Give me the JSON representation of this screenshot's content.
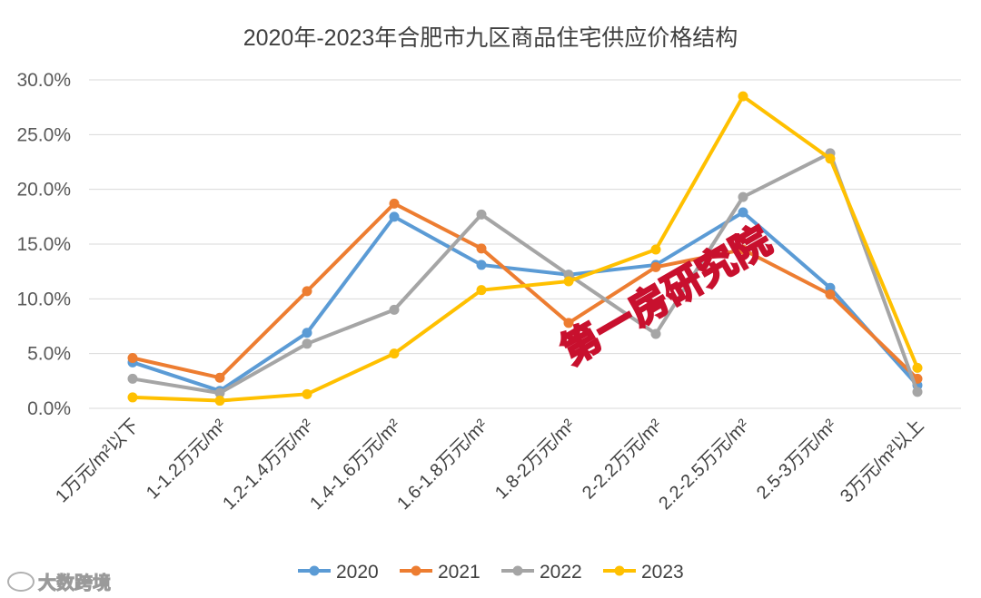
{
  "chart_data": {
    "type": "line",
    "title": "2020年-2023年合肥市九区商品住宅供应价格结构",
    "categories": [
      "1万元/m²以下",
      "1-1.2万元/m²",
      "1.2-1.4万元/m²",
      "1.4-1.6万元/m²",
      "1.6-1.8万元/m²",
      "1.8-2万元/m²",
      "2-2.2万元/m²",
      "2.2-2.5万元/m²",
      "2.5-3万元/m²",
      "3万元/m²以上"
    ],
    "ylim": [
      0,
      30
    ],
    "yticks": [
      "0.0%",
      "5.0%",
      "10.0%",
      "15.0%",
      "20.0%",
      "25.0%",
      "30.0%"
    ],
    "grid": true,
    "legend_position": "bottom",
    "series": [
      {
        "name": "2020",
        "color": "#5b9bd5",
        "values": [
          4.2,
          1.6,
          6.9,
          17.5,
          13.1,
          12.2,
          13.1,
          17.9,
          11.0,
          2.1
        ]
      },
      {
        "name": "2021",
        "color": "#ed7d31",
        "values": [
          4.6,
          2.8,
          10.7,
          18.7,
          14.6,
          7.8,
          12.9,
          14.5,
          10.4,
          2.7
        ]
      },
      {
        "name": "2022",
        "color": "#a5a5a5",
        "values": [
          2.7,
          1.4,
          5.9,
          9.0,
          17.7,
          12.2,
          6.8,
          19.3,
          23.3,
          1.5
        ]
      },
      {
        "name": "2023",
        "color": "#ffc000",
        "values": [
          1.0,
          0.7,
          1.3,
          5.0,
          10.8,
          11.6,
          14.5,
          28.5,
          22.8,
          3.7
        ]
      }
    ]
  },
  "watermark": {
    "stamp_text": "第一房研究院",
    "brand_text": "大数跨境"
  }
}
